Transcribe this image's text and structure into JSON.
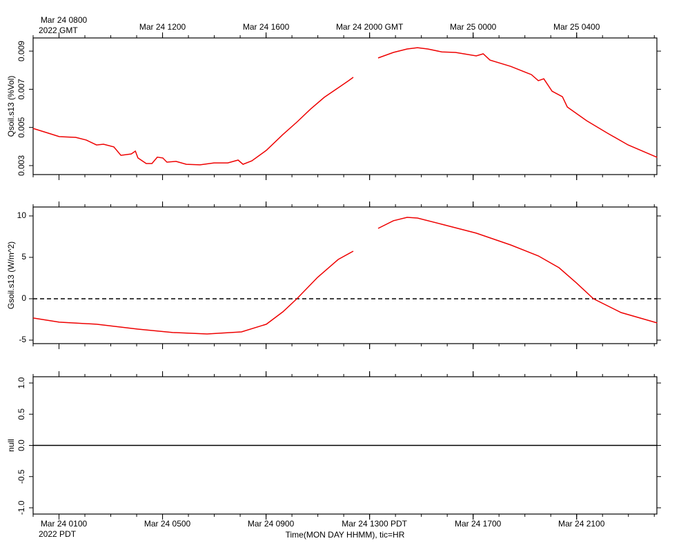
{
  "time_axis": {
    "xlim": [
      0,
      24.1
    ],
    "top_ticks": [
      {
        "value": 1,
        "label": "Mar 24 0800"
      },
      {
        "value": 5,
        "label": "Mar 24 1200"
      },
      {
        "value": 9,
        "label": "Mar 24 1600"
      },
      {
        "value": 13,
        "label": "Mar 24 2000 GMT"
      },
      {
        "value": 17,
        "label": "Mar 25 0000"
      },
      {
        "value": 21,
        "label": "Mar 25 0400"
      }
    ],
    "bottom_ticks": [
      {
        "value": 1,
        "label": "Mar 24 0100"
      },
      {
        "value": 5,
        "label": "Mar 24 0500"
      },
      {
        "value": 9,
        "label": "Mar 24 0900"
      },
      {
        "value": 13,
        "label": "Mar 24 1300 PDT"
      },
      {
        "value": 17,
        "label": "Mar 24 1700"
      },
      {
        "value": 21,
        "label": "Mar 24 2100"
      }
    ],
    "minor_ticks": [
      0,
      1,
      2,
      3,
      4,
      5,
      6,
      7,
      8,
      9,
      10,
      11,
      12,
      13,
      14,
      15,
      16,
      17,
      18,
      19,
      20,
      21,
      22,
      23,
      24
    ],
    "top_year": "2022 GMT",
    "bottom_year": "2022 PDT",
    "xlabel": "Time(MON DAY HHMM), tic=HR"
  },
  "chart_data": [
    {
      "type": "line",
      "ylabel": "Qsoil.s13 (%Vol)",
      "ylim": [
        0.00253,
        0.00969
      ],
      "yticks": [
        0.003,
        0.005,
        0.007,
        0.009
      ],
      "ytick_rotate": true,
      "series": [
        {
          "color": "#ee0000",
          "x": [
            0,
            0.59,
            1.01,
            1.65,
            2.05,
            2.45,
            2.72,
            3.12,
            3.39,
            3.79,
            3.95,
            4.05,
            4.37,
            4.59,
            4.8,
            5.01,
            5.17,
            5.52,
            5.92,
            6.45,
            6.99,
            7.52,
            7.92,
            8.11,
            8.45,
            9.01,
            9.65,
            10.19,
            10.72,
            11.25,
            11.79,
            12.19,
            12.37,
            12.85,
            13.33,
            13.92,
            14.45,
            14.85,
            15.25,
            15.79,
            16.32,
            17.12,
            17.39,
            17.65,
            18.45,
            19.25,
            19.52,
            19.73,
            20.05,
            20.45,
            20.64,
            21.39,
            22.19,
            22.99,
            24.11
          ],
          "values": [
            0.00495,
            0.0047,
            0.00452,
            0.00448,
            0.00434,
            0.00408,
            0.00412,
            0.00398,
            0.00354,
            0.00361,
            0.00376,
            0.0034,
            0.00311,
            0.00311,
            0.00344,
            0.0034,
            0.00318,
            0.00322,
            0.00307,
            0.00304,
            0.00314,
            0.00314,
            0.00329,
            0.00307,
            0.00325,
            0.0038,
            0.00463,
            0.00528,
            0.00596,
            0.00658,
            0.00708,
            0.00745,
            0.00763,
            null,
            0.00864,
            0.00893,
            0.00911,
            0.00918,
            0.00911,
            0.00896,
            0.00893,
            0.00875,
            0.00886,
            0.00853,
            0.0082,
            0.00777,
            0.00745,
            0.00755,
            0.0069,
            0.00661,
            0.00607,
            0.00535,
            0.0047,
            0.00408,
            0.00343
          ]
        }
      ]
    },
    {
      "type": "line",
      "ylabel": "Gsoil.s13 (W/m^2)",
      "ylim": [
        -5.42,
        11.08
      ],
      "yticks": [
        -5,
        0,
        5,
        10
      ],
      "ytick_rotate": false,
      "zero_line": "dashed",
      "series": [
        {
          "color": "#ee0000",
          "x": [
            0,
            1.01,
            2.45,
            4.05,
            5.39,
            6.72,
            8.05,
            9.01,
            9.65,
            10.19,
            10.99,
            11.79,
            12.37,
            12.85,
            13.33,
            13.92,
            14.45,
            14.85,
            15.79,
            17.12,
            18.45,
            19.52,
            20.32,
            20.99,
            21.65,
            22.72,
            24.11
          ],
          "values": [
            -2.33,
            -2.83,
            -3.08,
            -3.67,
            -4.08,
            -4.25,
            -4.0,
            -3.08,
            -1.58,
            0,
            2.58,
            4.75,
            5.75,
            null,
            8.5,
            9.42,
            9.83,
            9.75,
            9.0,
            7.92,
            6.5,
            5.17,
            3.75,
            1.92,
            0,
            -1.67,
            -2.92
          ]
        }
      ]
    },
    {
      "type": "line",
      "ylabel": "null",
      "ylim": [
        -1.1,
        1.1
      ],
      "yticks": [
        {
          "value": -1,
          "label": "-1.0"
        },
        {
          "value": -0.5,
          "label": "-0.5"
        },
        {
          "value": 0,
          "label": "0.0"
        },
        {
          "value": 0.5,
          "label": "0.5"
        },
        {
          "value": 1,
          "label": "1.0"
        }
      ],
      "ytick_rotate": true,
      "zero_line": "solid"
    }
  ]
}
